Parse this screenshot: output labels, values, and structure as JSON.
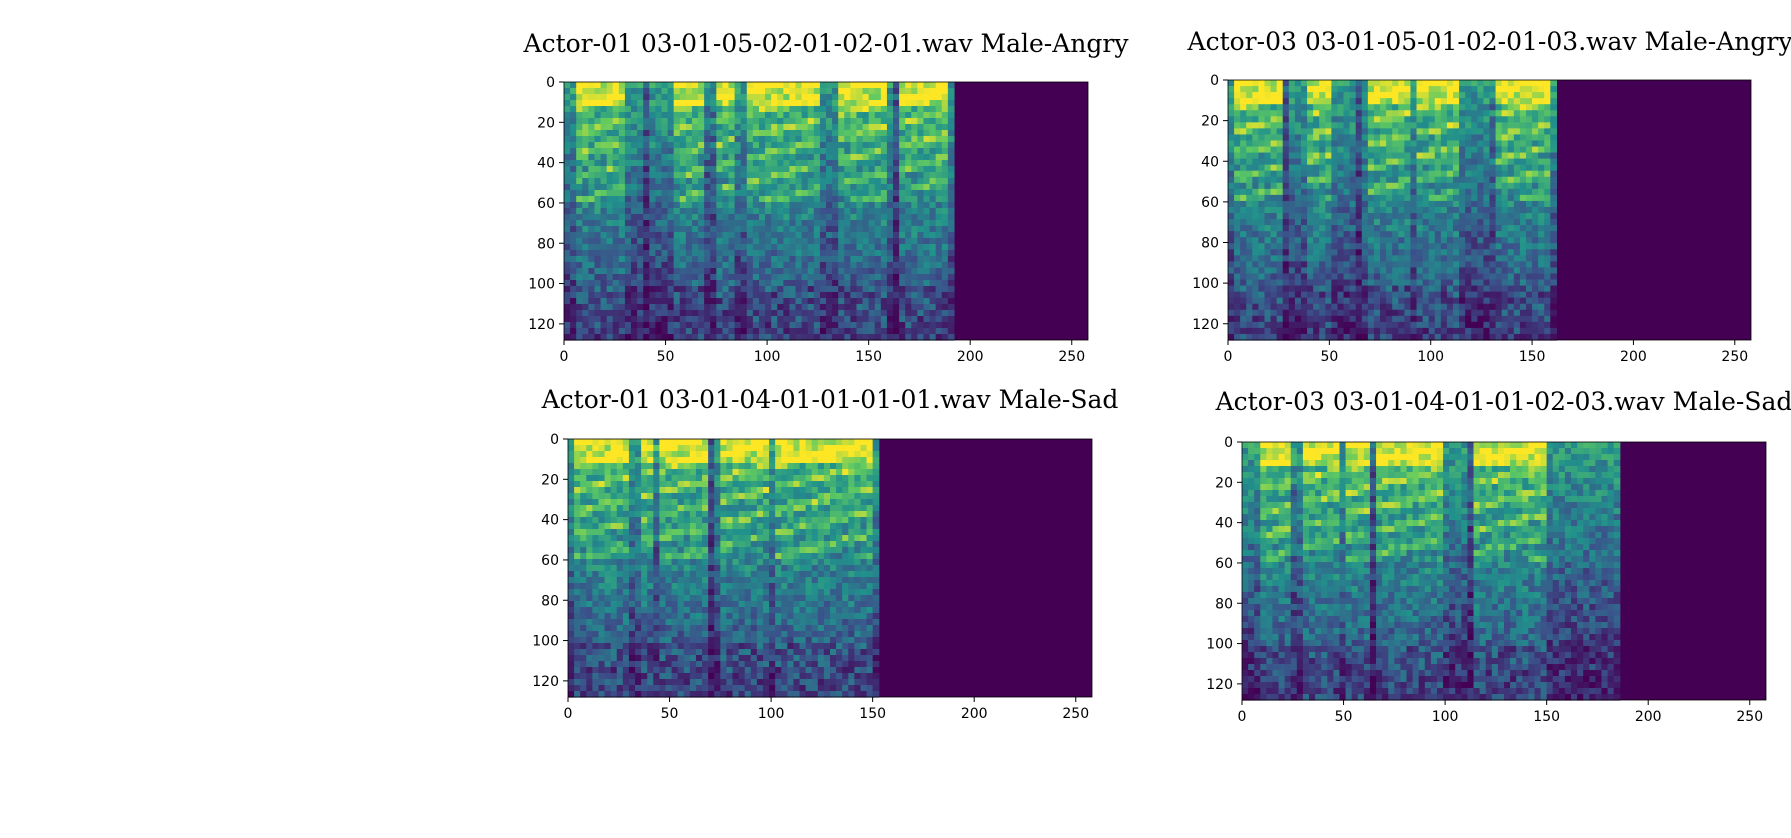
{
  "colors": {
    "background": "#440154",
    "palette": [
      "#440154",
      "#3b528b",
      "#21918c",
      "#5ec962",
      "#fde725"
    ]
  },
  "chart_data": [
    {
      "type": "heatmap",
      "title": "Actor-01 03-01-05-02-01-02-01.wav Male-Angry",
      "xlim": [
        0,
        258
      ],
      "ylim": [
        0,
        128
      ],
      "xticks": [
        "0",
        "50",
        "100",
        "150",
        "200",
        "250"
      ],
      "yticks": [
        "0",
        "20",
        "40",
        "60",
        "80",
        "100",
        "120"
      ],
      "signal_end": 193,
      "gaps": [
        [
          38,
          42
        ],
        [
          70,
          74
        ],
        [
          162,
          165
        ]
      ],
      "harmonic_bands": [
        [
          5,
          30
        ],
        [
          55,
          85
        ],
        [
          90,
          125
        ],
        [
          135,
          160
        ],
        [
          165,
          190
        ]
      ]
    },
    {
      "type": "heatmap",
      "title": "Actor-03 03-01-05-01-02-01-03.wav Male-Angry",
      "xlim": [
        0,
        258
      ],
      "ylim": [
        0,
        128
      ],
      "xticks": [
        "0",
        "50",
        "100",
        "150",
        "200",
        "250"
      ],
      "yticks": [
        "0",
        "20",
        "40",
        "60",
        "80",
        "100",
        "120"
      ],
      "signal_end": 162,
      "gaps": [
        [
          28,
          31
        ],
        [
          63,
          66
        ],
        [
          129,
          132
        ]
      ],
      "harmonic_bands": [
        [
          2,
          28
        ],
        [
          38,
          50
        ],
        [
          68,
          90
        ],
        [
          93,
          113
        ],
        [
          128,
          160
        ]
      ]
    },
    {
      "type": "heatmap",
      "title": "Actor-01 03-01-04-01-01-01-01.wav Male-Sad",
      "xlim": [
        0,
        258
      ],
      "ylim": [
        0,
        128
      ],
      "xticks": [
        "0",
        "50",
        "100",
        "150",
        "200",
        "250"
      ],
      "yticks": [
        "0",
        "20",
        "40",
        "60",
        "80",
        "100",
        "120"
      ],
      "signal_end": 154,
      "gaps": [
        [
          43,
          46
        ],
        [
          70,
          72
        ],
        [
          125,
          127
        ]
      ],
      "harmonic_bands": [
        [
          3,
          30
        ],
        [
          35,
          50
        ],
        [
          52,
          68
        ],
        [
          75,
          100
        ],
        [
          102,
          150
        ]
      ]
    },
    {
      "type": "heatmap",
      "title": "Actor-03 03-01-04-01-01-02-03.wav Male-Sad",
      "xlim": [
        0,
        258
      ],
      "ylim": [
        0,
        128
      ],
      "xticks": [
        "0",
        "50",
        "100",
        "150",
        "200",
        "250"
      ],
      "yticks": [
        "0",
        "20",
        "40",
        "60",
        "80",
        "100",
        "120"
      ],
      "signal_end": 186,
      "gaps": [
        [
          24,
          26
        ],
        [
          63,
          65
        ],
        [
          112,
          114
        ]
      ],
      "harmonic_bands": [
        [
          8,
          28
        ],
        [
          30,
          48
        ],
        [
          50,
          63
        ],
        [
          67,
          100
        ],
        [
          115,
          150
        ]
      ]
    }
  ]
}
